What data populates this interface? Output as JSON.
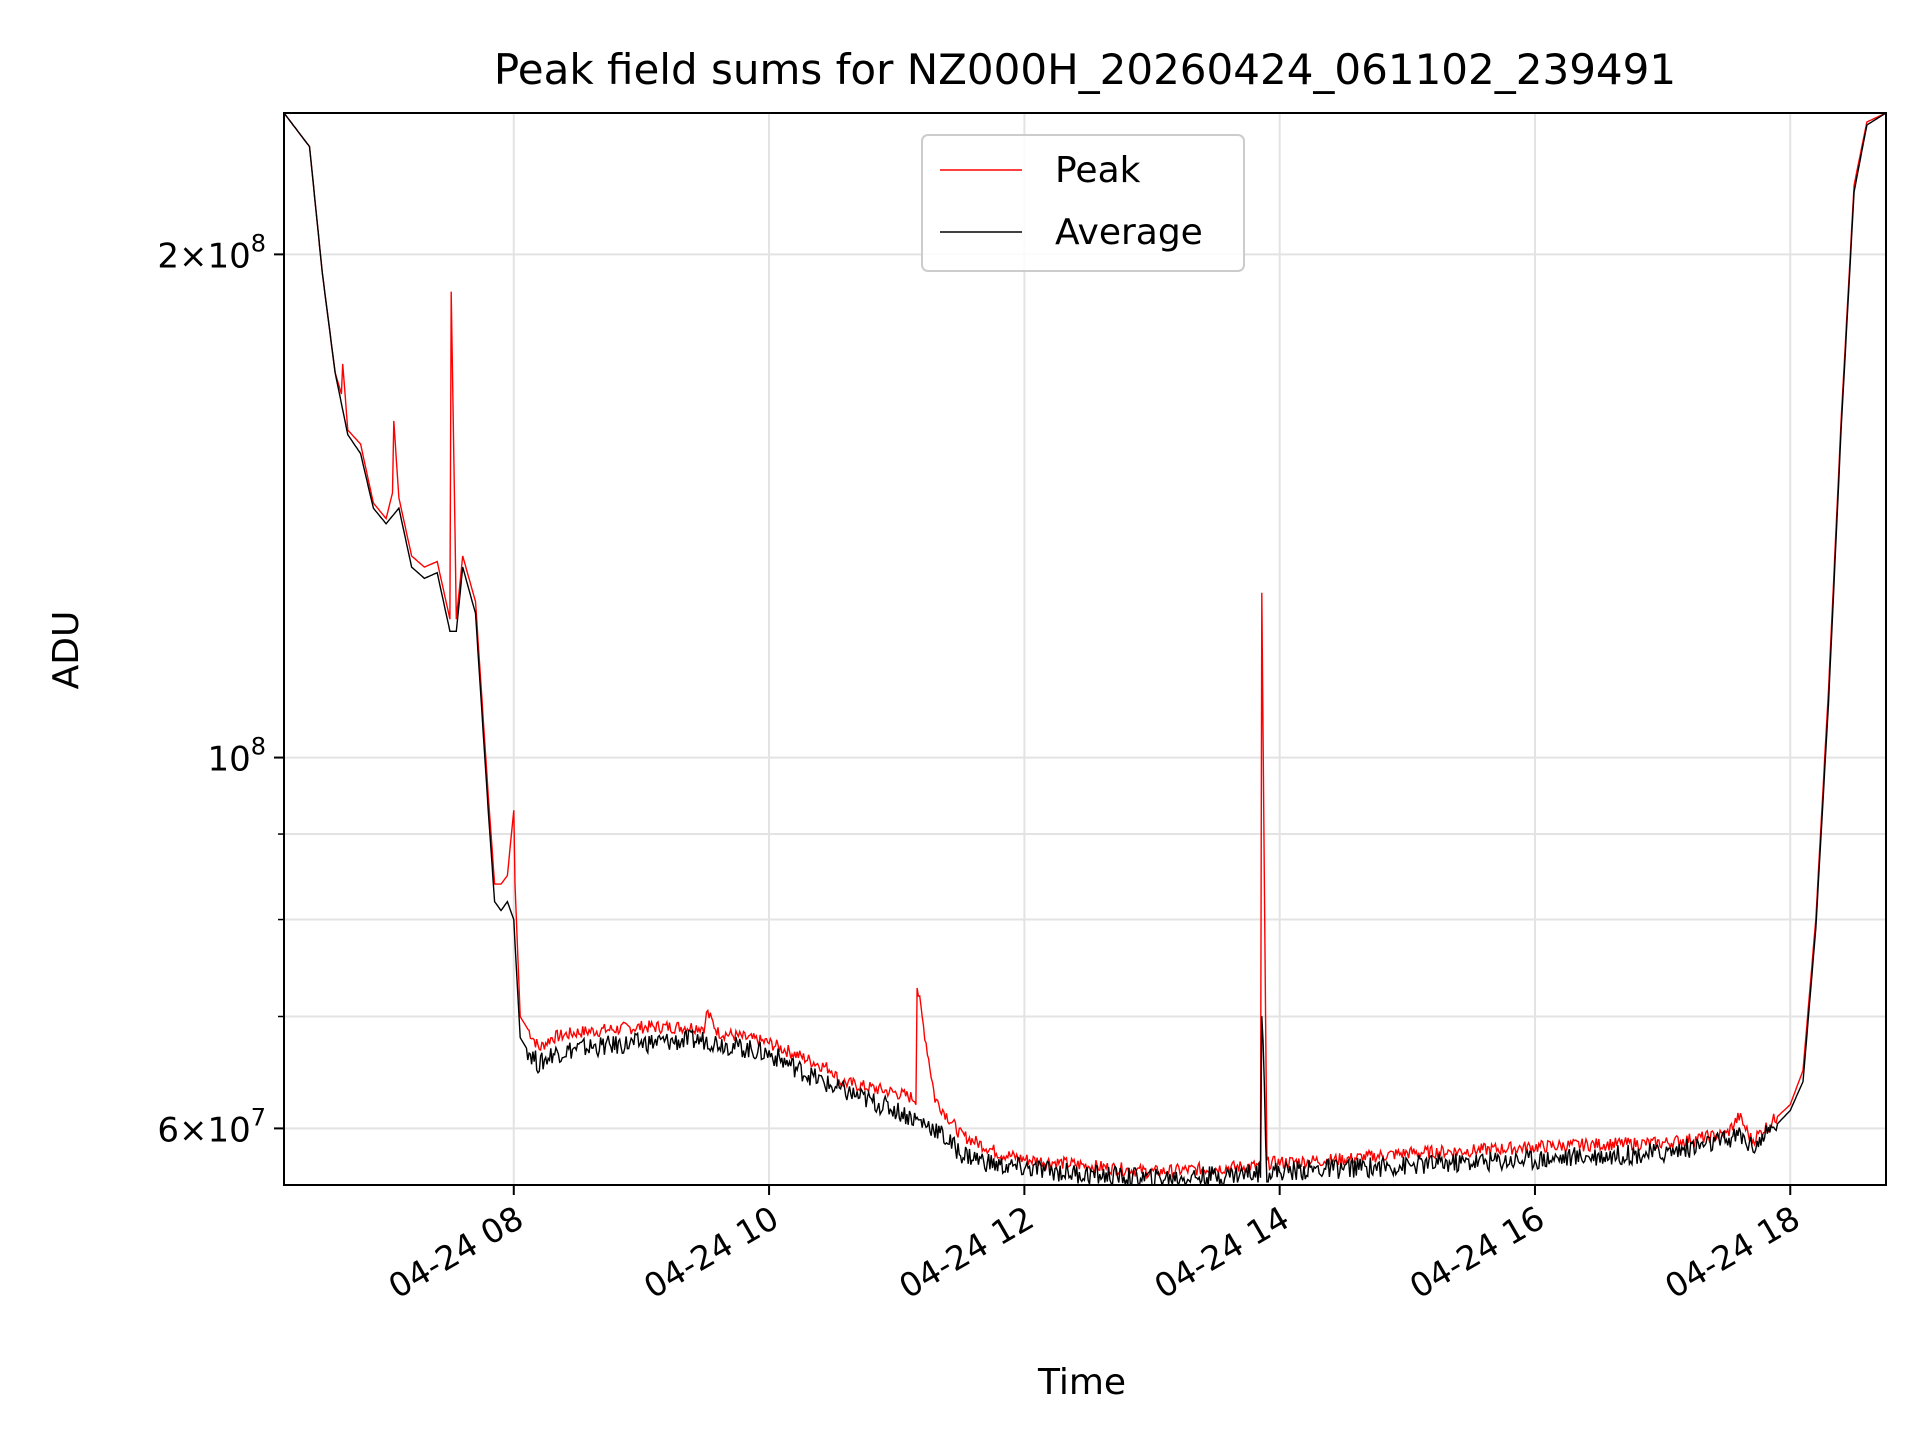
{
  "chart_data": {
    "type": "line",
    "title": "Peak field sums for NZ000H_20260424_061102_239491",
    "xlabel": "Time",
    "ylabel": "ADU",
    "yscale": "log",
    "xlim": [
      6.2,
      18.75
    ],
    "ylim": [
      55500000,
      243000000
    ],
    "grid": true,
    "legend_position": "top-center",
    "x_unit": "hours (2026-04-24)",
    "x_ticks": [
      {
        "value": 8,
        "label": "04-24 08"
      },
      {
        "value": 10,
        "label": "04-24 10"
      },
      {
        "value": 12,
        "label": "04-24 12"
      },
      {
        "value": 14,
        "label": "04-24 14"
      },
      {
        "value": 16,
        "label": "04-24 16"
      },
      {
        "value": 18,
        "label": "04-24 18"
      }
    ],
    "y_major_ticks": [
      {
        "value": 60000000,
        "label_base": "6×10",
        "label_exp": "7"
      },
      {
        "value": 100000000,
        "label_base": "10",
        "label_exp": "8"
      },
      {
        "value": 200000000,
        "label_base": "2×10",
        "label_exp": "8"
      }
    ],
    "y_minor_ticks": [
      70000000,
      80000000,
      90000000
    ],
    "series": [
      {
        "name": "Peak",
        "color": "#ff0000",
        "x": [
          6.2,
          6.4,
          6.5,
          6.6,
          6.65,
          6.66,
          6.7,
          6.8,
          6.9,
          7.0,
          7.05,
          7.06,
          7.1,
          7.2,
          7.3,
          7.4,
          7.5,
          7.51,
          7.55,
          7.6,
          7.7,
          7.8,
          7.85,
          7.9,
          7.95,
          8.0,
          8.01,
          8.05,
          8.1,
          8.2,
          8.3,
          8.5,
          9.0,
          9.5,
          9.51,
          9.6,
          10.0,
          10.5,
          10.55,
          11.0,
          11.15,
          11.16,
          11.3,
          11.5,
          11.7,
          11.8,
          12.0,
          12.5,
          13.0,
          13.5,
          13.85,
          13.86,
          13.9,
          14.5,
          15.0,
          15.5,
          16.0,
          16.5,
          17.0,
          17.5,
          17.6,
          17.7,
          17.8,
          18.0,
          18.1,
          18.2,
          18.3,
          18.4,
          18.5,
          18.6,
          18.75
        ],
        "y": [
          243000000,
          232000000,
          195000000,
          170000000,
          165000000,
          172000000,
          157000000,
          154000000,
          142000000,
          139000000,
          144000000,
          159000000,
          143000000,
          132000000,
          130000000,
          131000000,
          121000000,
          190000000,
          121000000,
          132000000,
          124000000,
          95000000,
          84000000,
          84000000,
          85000000,
          93000000,
          84000000,
          70000000,
          69000000,
          67000000,
          68000000,
          68500000,
          69000000,
          69000000,
          70500000,
          68500000,
          67500000,
          65000000,
          64000000,
          63000000,
          62500000,
          73000000,
          62500000,
          59500000,
          58500000,
          58000000,
          57500000,
          57000000,
          56500000,
          56800000,
          57000000,
          125000000,
          57200000,
          57500000,
          58000000,
          58200000,
          58500000,
          58700000,
          58800000,
          59500000,
          61000000,
          59000000,
          60000000,
          62000000,
          65000000,
          80000000,
          110000000,
          160000000,
          220000000,
          240000000,
          243000000
        ]
      },
      {
        "name": "Average",
        "color": "#000000",
        "x": [
          6.2,
          6.4,
          6.5,
          6.6,
          6.7,
          6.8,
          6.9,
          7.0,
          7.1,
          7.2,
          7.3,
          7.4,
          7.5,
          7.55,
          7.6,
          7.7,
          7.8,
          7.85,
          7.9,
          7.95,
          8.0,
          8.05,
          8.1,
          8.2,
          8.3,
          8.5,
          9.0,
          9.5,
          10.0,
          10.5,
          11.0,
          11.3,
          11.5,
          11.7,
          11.8,
          12.0,
          12.5,
          13.0,
          13.5,
          13.85,
          13.86,
          13.9,
          14.5,
          15.0,
          15.5,
          16.0,
          16.5,
          17.0,
          17.5,
          17.6,
          17.7,
          17.8,
          18.0,
          18.1,
          18.2,
          18.3,
          18.4,
          18.5,
          18.6,
          18.75
        ],
        "y": [
          243000000,
          232000000,
          195000000,
          170000000,
          156000000,
          152000000,
          141000000,
          138000000,
          141000000,
          130000000,
          128000000,
          129000000,
          119000000,
          119000000,
          130000000,
          122000000,
          93000000,
          82000000,
          81000000,
          82000000,
          80000000,
          68000000,
          67000000,
          65500000,
          66500000,
          67000000,
          67500000,
          67800000,
          66500000,
          63500000,
          61500000,
          60000000,
          58000000,
          57300000,
          57000000,
          56800000,
          56300000,
          56000000,
          56200000,
          56500000,
          71000000,
          56500000,
          56800000,
          57000000,
          57300000,
          57500000,
          57800000,
          58000000,
          59000000,
          59500000,
          58500000,
          59300000,
          61500000,
          64000000,
          79000000,
          108000000,
          158000000,
          218000000,
          239000000,
          243000000
        ]
      }
    ]
  }
}
